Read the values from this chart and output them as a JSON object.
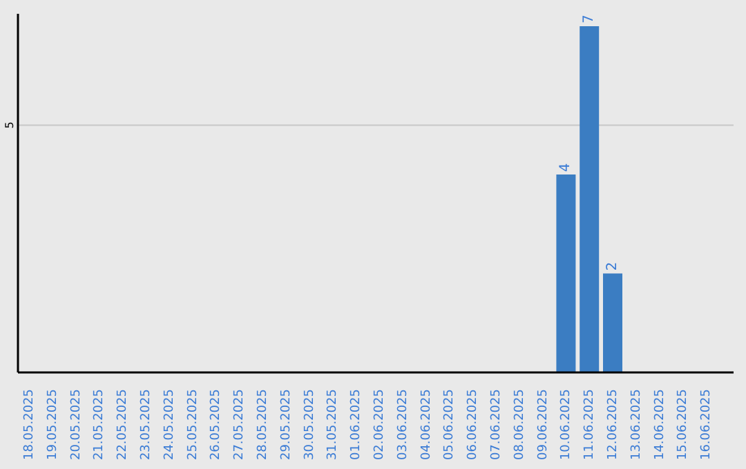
{
  "chart_data": {
    "type": "bar",
    "categories": [
      "18.05.2025",
      "19.05.2025",
      "20.05.2025",
      "21.05.2025",
      "22.05.2025",
      "23.05.2025",
      "24.05.2025",
      "25.05.2025",
      "26.05.2025",
      "27.05.2025",
      "28.05.2025",
      "29.05.2025",
      "30.05.2025",
      "31.05.2025",
      "01.06.2025",
      "02.06.2025",
      "03.06.2025",
      "04.06.2025",
      "05.06.2025",
      "06.06.2025",
      "07.06.2025",
      "08.06.2025",
      "09.06.2025",
      "10.06.2025",
      "11.06.2025",
      "12.06.2025",
      "13.06.2025",
      "14.06.2025",
      "15.06.2025",
      "16.06.2025"
    ],
    "values": [
      null,
      null,
      null,
      null,
      null,
      null,
      null,
      null,
      null,
      null,
      null,
      null,
      null,
      null,
      null,
      null,
      null,
      null,
      null,
      null,
      null,
      null,
      null,
      4,
      7,
      2,
      null,
      null,
      null,
      null
    ],
    "color": "#3b7dc2",
    "ylim": [
      0,
      7.25
    ],
    "yticks": [
      5
    ],
    "grid": "y",
    "data_labels": true
  }
}
